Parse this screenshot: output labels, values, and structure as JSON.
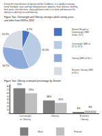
{
  "chart_data": [
    {
      "type": "pie",
      "title": "Figure Two: Overweight and Obesity amongst adults twenty years and older from 2009 to 2012",
      "annotations": [
        "During the intensification of obesity and the Caribbean, in a rapidly increasing trend, metabolic rates and high blood pressure, diabetes, heart disease, infertility, back pains, skin infections, sleep gallstones and it is to show and measure the obesity in adults by sex and ethnicity."
      ],
      "categories": [
        "Normal Weight or Underweight (BMI Under 24.9)",
        "Overweight (BMI of 25 To 29.9)",
        "Obesity (BMI of 30+)",
        "Extreme Obesity (BMI of 40+)"
      ],
      "values": [
        6.7,
        37.3,
        33.7,
        22.3
      ],
      "value_labels": [
        "6.7%",
        "37.3%",
        "33.7%",
        "22.3%"
      ],
      "colors": [
        "#4472c4",
        "#b8cce4",
        "#8eaadb",
        "#d6dce4"
      ],
      "data_labels": true,
      "legend": "right"
    },
    {
      "type": "bar",
      "title": "Figure Two: Obesity estimated percentage by Gender",
      "categories": [
        "Overweight\nor Obesity",
        "Obesity",
        "Extreme\nObesity"
      ],
      "series": [
        {
          "name": "Male",
          "color": "#7f7f7f",
          "values": [
            74,
            38,
            4
          ],
          "value_labels": [
            "74%",
            "38%",
            "4%"
          ]
        },
        {
          "name": "Female",
          "color": "#bfbfbf",
          "values": [
            59,
            31,
            8
          ],
          "value_labels": [
            "59%",
            "31%",
            "8%"
          ]
        }
      ],
      "ylim": [
        0,
        85
      ],
      "yticks": [
        0,
        10,
        20,
        30,
        40,
        50,
        60,
        70,
        80
      ],
      "grid": false,
      "data_labels": true,
      "legend": "bottom"
    }
  ]
}
